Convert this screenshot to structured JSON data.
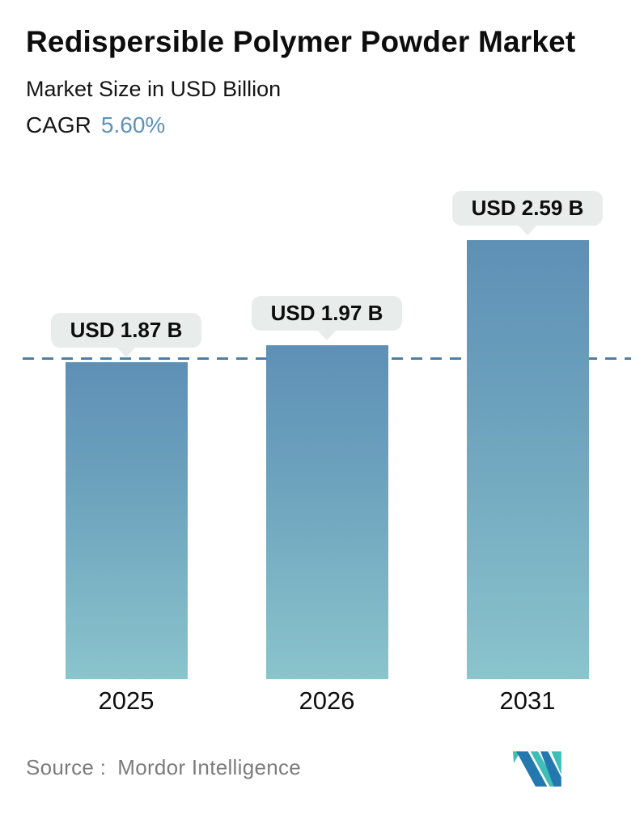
{
  "header": {
    "title": "Redispersible Polymer Powder Market",
    "subtitle": "Market Size in USD Billion",
    "cagr_label": "CAGR",
    "cagr_value": "5.60%"
  },
  "chart_data": {
    "type": "bar",
    "categories": [
      "2025",
      "2026",
      "2031"
    ],
    "values": [
      1.87,
      1.97,
      2.59
    ],
    "value_labels": [
      "USD 1.87 B",
      "USD 1.97 B",
      "USD 2.59 B"
    ],
    "title": "Redispersible Polymer Powder Market",
    "subtitle": "Market Size in USD Billion",
    "cagr": "5.60%",
    "ylabel": "Market Size (USD Billion)",
    "xlabel": "",
    "ylim": [
      0,
      2.59
    ],
    "grid": false,
    "legend": "none",
    "reference_line": {
      "style": "dashed",
      "value": 1.87,
      "color": "#4d7fa9"
    },
    "bar_gradient_top": "#5e90b6",
    "bar_gradient_bottom": "#8ac4cc",
    "label_pill_color": "#e8edec"
  },
  "footer": {
    "source_label": "Source :",
    "source_name": "Mordor Intelligence",
    "logo_name": "mordor-intelligence-logo",
    "logo_teal": "#3fbdb7",
    "logo_blue": "#2478b0"
  },
  "colors": {
    "accent_blue": "#5b93bd",
    "text": "#111111",
    "source_text": "#7c7c7c"
  }
}
